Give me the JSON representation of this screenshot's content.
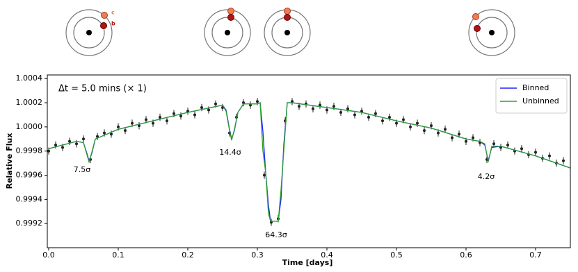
{
  "chart_data": {
    "type": "line",
    "xlabel": "Time [days]",
    "ylabel": "Relative Flux",
    "xlim": [
      -0.002,
      0.75
    ],
    "ylim": [
      0.999,
      1.00043
    ],
    "xticks": [
      {
        "value": 0,
        "label": "0.0"
      },
      0.1,
      0.2,
      0.3,
      0.4,
      0.5,
      0.6,
      0.7
    ],
    "yticks": [
      0.9992,
      0.9994,
      0.9996,
      0.9998,
      {
        "value": 1,
        "label": "1.0000"
      },
      1.0002,
      1.0004
    ],
    "legend": "upper right",
    "orbit_labels": [
      "c",
      "b"
    ],
    "annotations": [
      "Δt = 5.0 mins (× 1)",
      "7.5σ",
      "14.4σ",
      "64.3σ",
      "4.2σ"
    ],
    "series": [
      {
        "name": "Binned",
        "color": "#1f1fff",
        "x": [
          0,
          0.04,
          0.05,
          0.055,
          0.058,
          0.062,
          0.067,
          0.1,
          0.15,
          0.2,
          0.25,
          0.255,
          0.26,
          0.263,
          0.267,
          0.272,
          0.28,
          0.3,
          0.304,
          0.308,
          0.312,
          0.316,
          0.319,
          0.33,
          0.334,
          0.338,
          0.343,
          0.35,
          0.4,
          0.45,
          0.5,
          0.55,
          0.6,
          0.62,
          0.627,
          0.632,
          0.637,
          0.65,
          0.7,
          0.75
        ],
        "values": [
          0.99982,
          0.99988,
          0.99987,
          0.99978,
          0.99972,
          0.99978,
          0.9999,
          0.99998,
          1.00005,
          1.00012,
          1.00018,
          1.00014,
          0.99998,
          0.9999,
          0.99997,
          1.00012,
          1.00019,
          1.00019,
          1.0002,
          0.99996,
          0.99962,
          0.99935,
          0.99922,
          0.99922,
          0.9994,
          0.99985,
          1.0002,
          1.0002,
          1.00016,
          1.00012,
          1.00005,
          0.99999,
          0.9999,
          0.99988,
          0.99985,
          0.99972,
          0.99983,
          0.99984,
          0.99976,
          0.99966
        ]
      },
      {
        "name": "Unbinned",
        "color": "#2ca02c",
        "x": [
          0,
          0.04,
          0.05,
          0.055,
          0.058,
          0.062,
          0.067,
          0.1,
          0.15,
          0.2,
          0.25,
          0.255,
          0.26,
          0.263,
          0.267,
          0.272,
          0.28,
          0.3,
          0.304,
          0.308,
          0.312,
          0.316,
          0.319,
          0.33,
          0.334,
          0.338,
          0.343,
          0.35,
          0.4,
          0.45,
          0.5,
          0.55,
          0.6,
          0.62,
          0.627,
          0.632,
          0.637,
          0.65,
          0.7,
          0.75
        ],
        "values": [
          0.99982,
          0.99988,
          0.99987,
          0.99977,
          0.99971,
          0.99979,
          0.9999,
          0.99998,
          1.00005,
          1.00012,
          1.00018,
          1.00013,
          0.99997,
          0.99989,
          0.99998,
          1.00012,
          1.00019,
          1.00019,
          1.0002,
          0.9998,
          0.99962,
          0.99928,
          0.99922,
          0.99922,
          0.99948,
          0.9998,
          1.0002,
          1.0002,
          1.00016,
          1.00012,
          1.00005,
          0.99999,
          0.9999,
          0.99988,
          0.99986,
          0.99971,
          0.99984,
          0.99984,
          0.99976,
          0.99966
        ]
      },
      {
        "type": "scatter",
        "color": "#222222",
        "error": 3e-05,
        "x": [
          0,
          0.01,
          0.02,
          0.03,
          0.04,
          0.05,
          0.06,
          0.07,
          0.08,
          0.09,
          0.1,
          0.11,
          0.12,
          0.13,
          0.14,
          0.15,
          0.16,
          0.17,
          0.18,
          0.19,
          0.2,
          0.21,
          0.22,
          0.23,
          0.24,
          0.25,
          0.26,
          0.27,
          0.28,
          0.29,
          0.3,
          0.31,
          0.32,
          0.33,
          0.34,
          0.35,
          0.36,
          0.37,
          0.38,
          0.39,
          0.4,
          0.41,
          0.42,
          0.43,
          0.44,
          0.45,
          0.46,
          0.47,
          0.48,
          0.49,
          0.5,
          0.51,
          0.52,
          0.53,
          0.54,
          0.55,
          0.56,
          0.57,
          0.58,
          0.59,
          0.6,
          0.61,
          0.62,
          0.63,
          0.64,
          0.65,
          0.66,
          0.67,
          0.68,
          0.69,
          0.7,
          0.71,
          0.72,
          0.73,
          0.74
        ],
        "values": [
          0.9998,
          0.99985,
          0.99983,
          0.99988,
          0.99986,
          0.9999,
          0.99973,
          0.99992,
          0.99995,
          0.99994,
          1,
          0.99997,
          1.00003,
          1.00001,
          1.00006,
          1.00003,
          1.00008,
          1.00005,
          1.00011,
          1.00009,
          1.00013,
          1.0001,
          1.00016,
          1.00014,
          1.00019,
          1.00016,
          0.99995,
          1.00008,
          1.0002,
          1.00018,
          1.00021,
          0.9996,
          0.99921,
          0.99924,
          1.00005,
          1.00021,
          1.00017,
          1.00019,
          1.00015,
          1.00018,
          1.00014,
          1.00017,
          1.00012,
          1.00015,
          1.0001,
          1.00013,
          1.00008,
          1.00011,
          1.00005,
          1.00008,
          1.00003,
          1.00006,
          1,
          1.00003,
          0.99997,
          1.00001,
          0.99995,
          0.99998,
          0.99991,
          0.99994,
          0.99988,
          0.99991,
          0.99987,
          0.99973,
          0.99986,
          0.99983,
          0.99985,
          0.9998,
          0.99982,
          0.99977,
          0.99979,
          0.99974,
          0.99976,
          0.9997,
          0.99972
        ]
      }
    ]
  }
}
